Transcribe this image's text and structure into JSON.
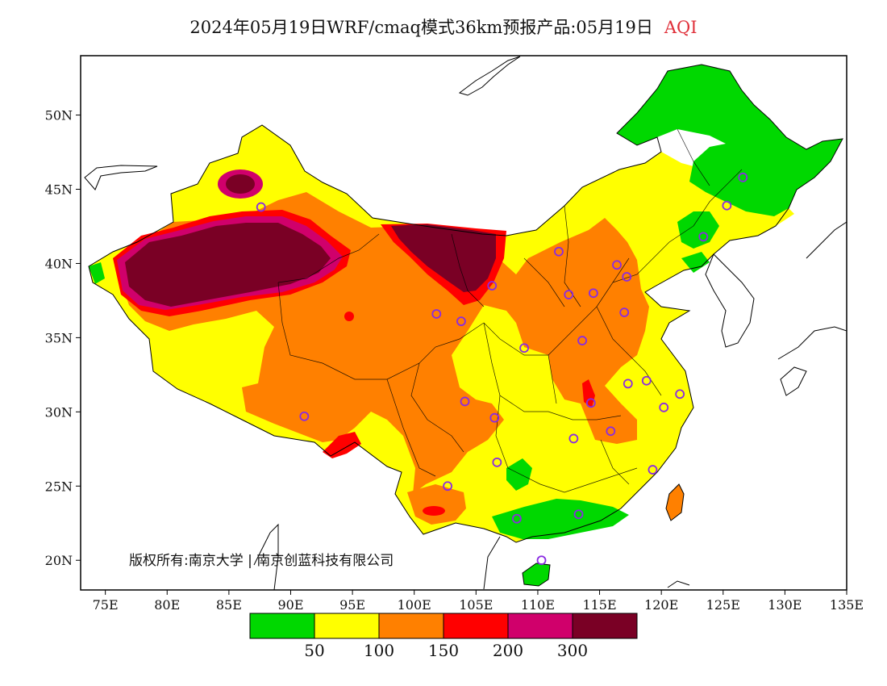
{
  "title": {
    "main": "2024年05月19日WRF/cmaq模式36km预报产品:05月19日",
    "variable": "AQI"
  },
  "copyright": "版权所有:南京大学 | 南京创蓝科技有限公司",
  "axes": {
    "lon_labels": [
      "75E",
      "80E",
      "85E",
      "90E",
      "95E",
      "100E",
      "105E",
      "110E",
      "115E",
      "120E",
      "125E",
      "130E",
      "135E"
    ],
    "lat_labels": [
      "20N",
      "25N",
      "30N",
      "35N",
      "40N",
      "45N",
      "50N"
    ],
    "lon_range": [
      73,
      135
    ],
    "lat_range": [
      18,
      54
    ]
  },
  "legend": {
    "thresholds": [
      "50",
      "100",
      "150",
      "200",
      "300"
    ],
    "colors": [
      "#00d800",
      "#ffff00",
      "#ff8000",
      "#ff0000",
      "#d0006b",
      "#7a0025"
    ]
  },
  "stations": [
    {
      "lon": 87.6,
      "lat": 43.8
    },
    {
      "lon": 91.1,
      "lat": 29.7
    },
    {
      "lon": 101.8,
      "lat": 36.6
    },
    {
      "lon": 103.8,
      "lat": 36.1
    },
    {
      "lon": 106.3,
      "lat": 38.5
    },
    {
      "lon": 111.7,
      "lat": 40.8
    },
    {
      "lon": 112.5,
      "lat": 37.9
    },
    {
      "lon": 114.5,
      "lat": 38.0
    },
    {
      "lon": 116.4,
      "lat": 39.9
    },
    {
      "lon": 117.2,
      "lat": 39.1
    },
    {
      "lon": 117.0,
      "lat": 36.7
    },
    {
      "lon": 113.6,
      "lat": 34.8
    },
    {
      "lon": 108.9,
      "lat": 34.3
    },
    {
      "lon": 104.1,
      "lat": 30.7
    },
    {
      "lon": 106.5,
      "lat": 29.6
    },
    {
      "lon": 106.7,
      "lat": 26.6
    },
    {
      "lon": 102.7,
      "lat": 25.0
    },
    {
      "lon": 108.3,
      "lat": 22.8
    },
    {
      "lon": 113.3,
      "lat": 23.1
    },
    {
      "lon": 110.3,
      "lat": 20.0
    },
    {
      "lon": 112.9,
      "lat": 28.2
    },
    {
      "lon": 114.3,
      "lat": 30.6
    },
    {
      "lon": 115.9,
      "lat": 28.7
    },
    {
      "lon": 117.3,
      "lat": 31.9
    },
    {
      "lon": 118.8,
      "lat": 32.1
    },
    {
      "lon": 120.2,
      "lat": 30.3
    },
    {
      "lon": 121.5,
      "lat": 31.2
    },
    {
      "lon": 119.3,
      "lat": 26.1
    },
    {
      "lon": 123.4,
      "lat": 41.8
    },
    {
      "lon": 125.3,
      "lat": 43.9
    },
    {
      "lon": 126.6,
      "lat": 45.8
    }
  ]
}
